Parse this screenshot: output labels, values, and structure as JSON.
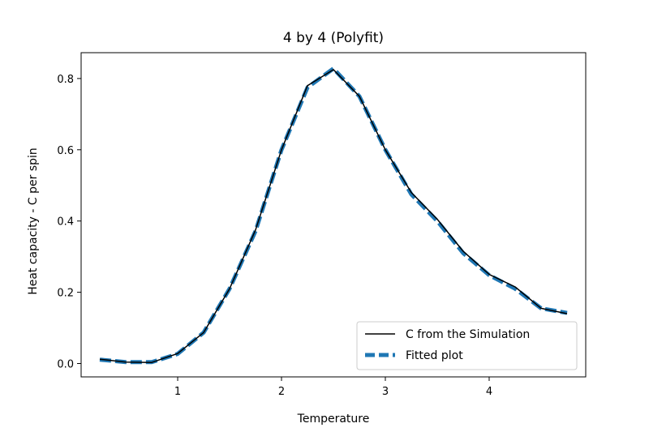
{
  "chart_data": {
    "type": "line",
    "title": "4 by 4 (Polyfit)",
    "xlabel": "Temperature",
    "ylabel": "Heat capacity - C per spin",
    "xlim": [
      0.07,
      4.93
    ],
    "ylim": [
      -0.0375,
      0.8725
    ],
    "xticks": [
      1,
      2,
      3,
      4
    ],
    "yticks": [
      0.0,
      0.2,
      0.4,
      0.6,
      0.8
    ],
    "ytick_labels": [
      "0.0",
      "0.2",
      "0.4",
      "0.6",
      "0.8"
    ],
    "grid": false,
    "legend": {
      "position": "lower-right"
    },
    "x": [
      0.25,
      0.5,
      0.75,
      1.0,
      1.25,
      1.5,
      1.75,
      2.0,
      2.25,
      2.5,
      2.75,
      3.0,
      3.25,
      3.5,
      3.75,
      4.0,
      4.25,
      4.5,
      4.75
    ],
    "series": [
      {
        "name": "C from the Simulation",
        "color": "#000000",
        "style": "solid",
        "values": [
          0.012,
          0.004,
          0.003,
          0.028,
          0.087,
          0.21,
          0.375,
          0.6,
          0.78,
          0.825,
          0.75,
          0.6,
          0.48,
          0.405,
          0.315,
          0.25,
          0.215,
          0.155,
          0.14
        ]
      },
      {
        "name": "Fitted plot",
        "color": "#1f77b4",
        "style": "dashed",
        "values": [
          0.011,
          0.004,
          0.004,
          0.027,
          0.087,
          0.21,
          0.372,
          0.6,
          0.775,
          0.828,
          0.75,
          0.6,
          0.475,
          0.4,
          0.31,
          0.248,
          0.21,
          0.155,
          0.142
        ]
      }
    ]
  }
}
